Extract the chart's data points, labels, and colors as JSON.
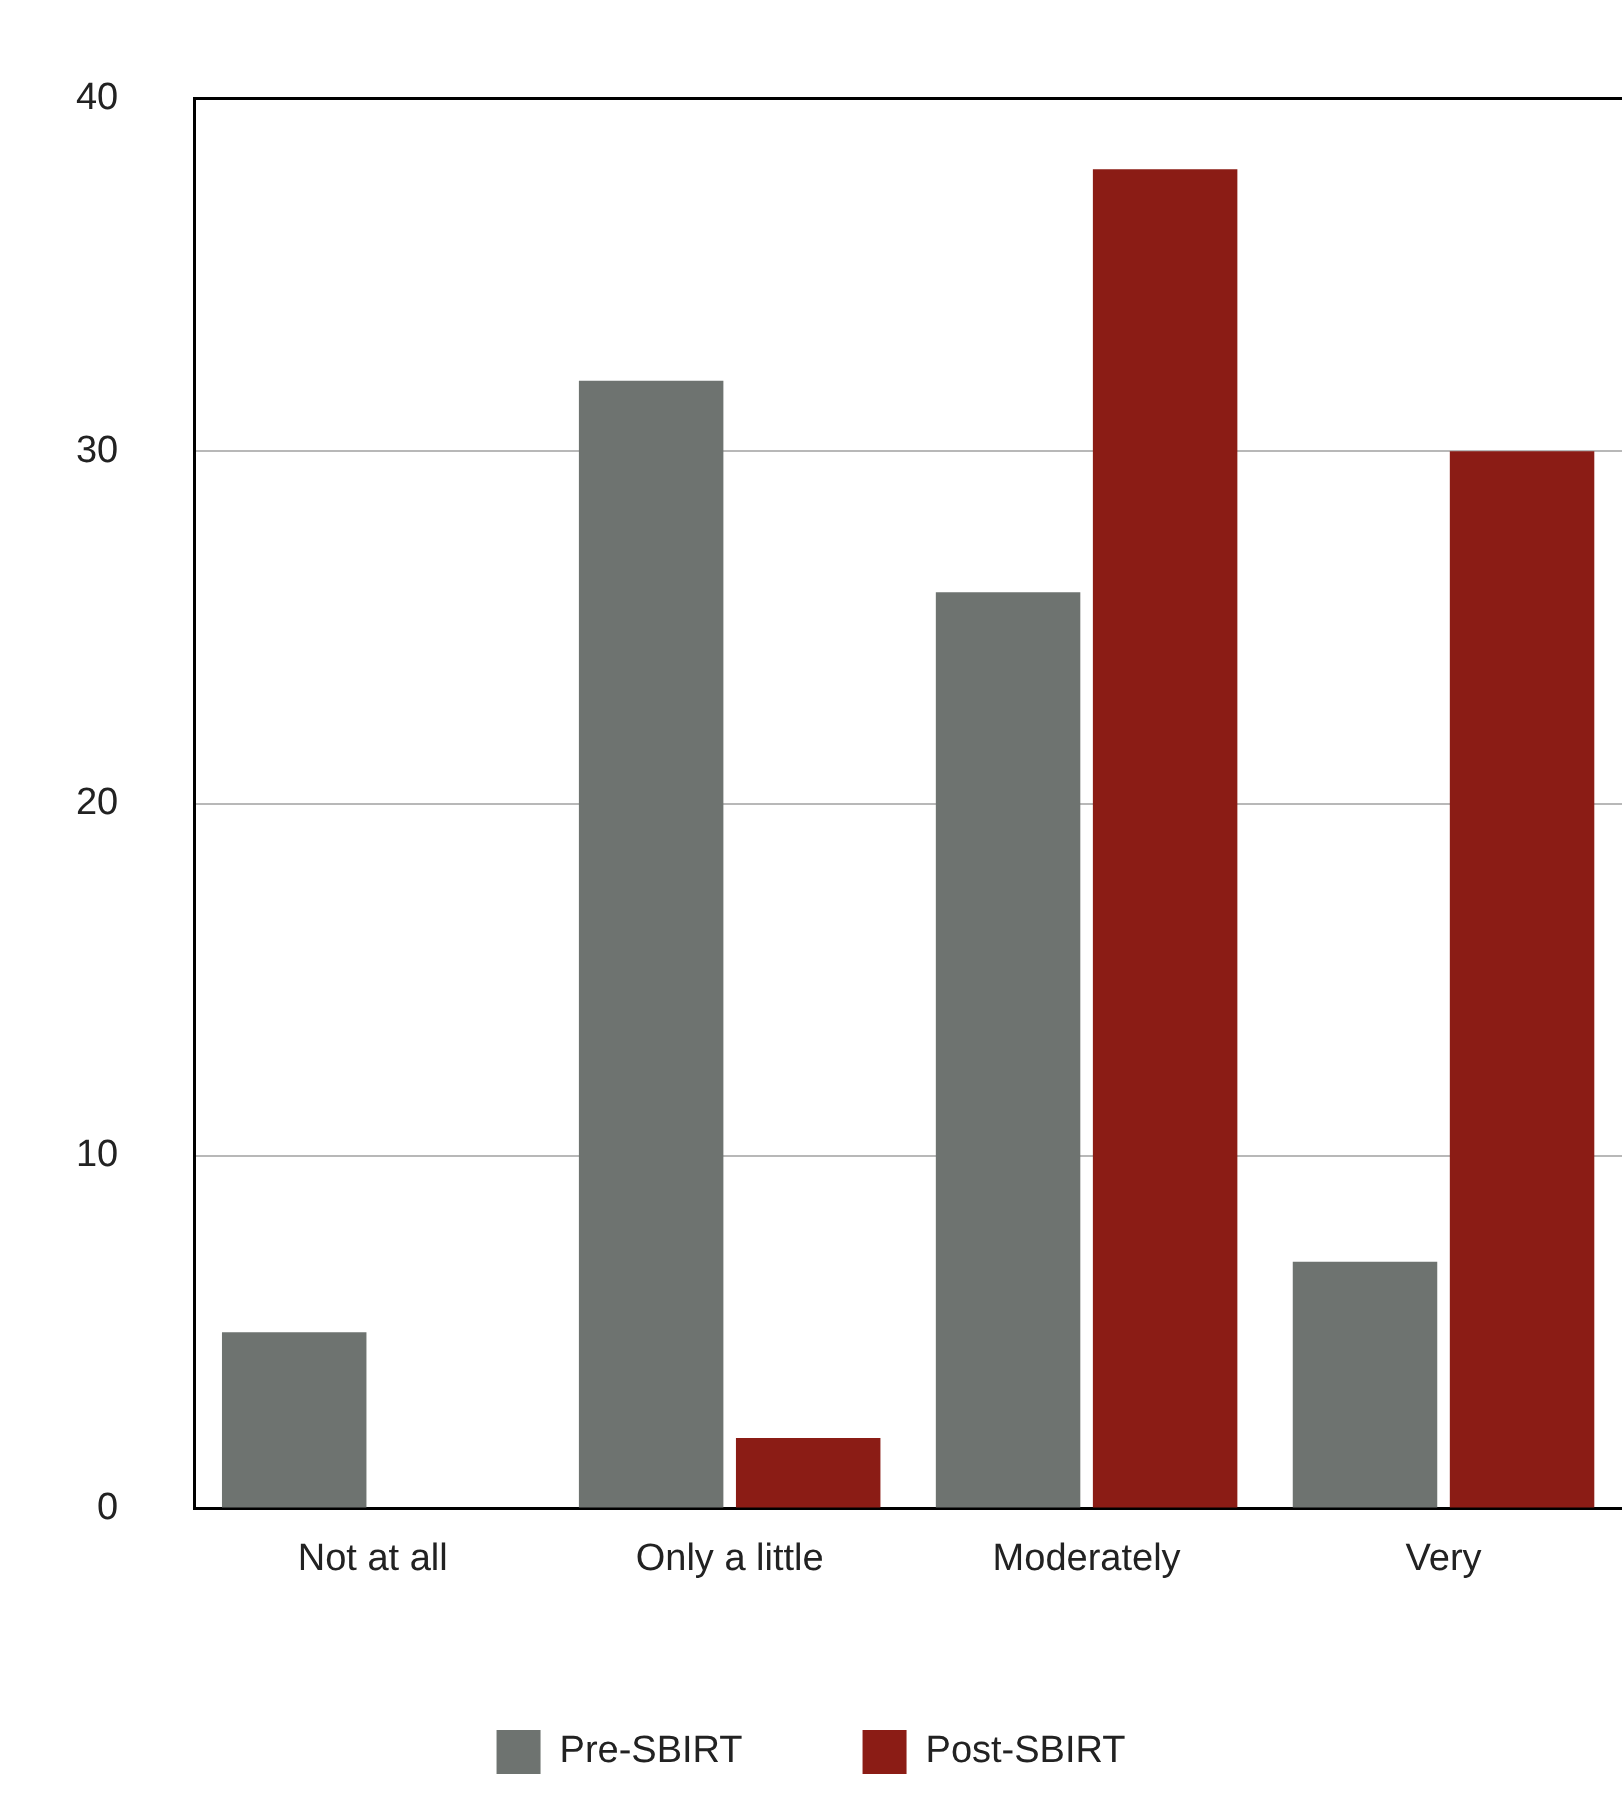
{
  "chart_data": {
    "type": "bar",
    "categories": [
      "Not at all",
      "Only a little",
      "Moderately",
      "Very"
    ],
    "series": [
      {
        "name": "Pre-SBIRT",
        "color": "#6e7370",
        "values": [
          5,
          32,
          26,
          7
        ]
      },
      {
        "name": "Post-SBIRT",
        "color": "#8b1c15",
        "values": [
          0,
          2,
          38,
          30
        ]
      }
    ],
    "ylim": [
      0,
      40
    ],
    "yticks": [
      0,
      10,
      20,
      30,
      40
    ],
    "grid": "y",
    "legend": "bottom"
  }
}
